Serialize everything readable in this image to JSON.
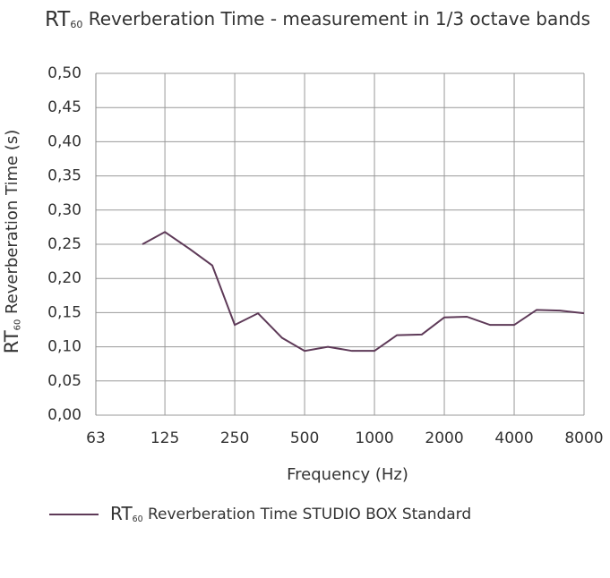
{
  "chart_data": {
    "type": "line",
    "title": [
      "RT",
      "60",
      " Reverberation Time  - measurement in 1/3 octave bands"
    ],
    "x_label": "Frequency (Hz)",
    "y_label": [
      "RT",
      "60",
      " Reverberation Time (s)"
    ],
    "x": [
      100,
      125,
      160,
      200,
      250,
      315,
      400,
      500,
      630,
      800,
      1000,
      1250,
      1600,
      2000,
      2500,
      3150,
      4000,
      5000,
      6300,
      8000
    ],
    "series": [
      {
        "name": [
          "RT",
          "60",
          " Reverberation Time STUDIO BOX Standard"
        ],
        "color": "#5e3a58",
        "values": [
          0.25,
          0.268,
          0.243,
          0.219,
          0.132,
          0.149,
          0.113,
          0.094,
          0.1,
          0.094,
          0.094,
          0.117,
          0.118,
          0.143,
          0.144,
          0.132,
          0.132,
          0.154,
          0.153,
          0.149
        ]
      }
    ],
    "xscale": "log",
    "xlim": [
      63,
      8000
    ],
    "xticks": [
      63,
      125,
      250,
      500,
      1000,
      2000,
      4000,
      8000
    ],
    "ylim": [
      0,
      0.5
    ],
    "yticks": [
      {
        "value": 0,
        "label": "0,00"
      },
      {
        "value": 0.05,
        "label": "0,05"
      },
      {
        "value": 0.1,
        "label": "0,10"
      },
      {
        "value": 0.15,
        "label": "0,15"
      },
      {
        "value": 0.2,
        "label": "0,20"
      },
      {
        "value": 0.25,
        "label": "0,25"
      },
      {
        "value": 0.3,
        "label": "0,30"
      },
      {
        "value": 0.35,
        "label": "0,35"
      },
      {
        "value": 0.4,
        "label": "0,40"
      },
      {
        "value": 0.45,
        "label": "0,45"
      },
      {
        "value": 0.5,
        "label": "0,50"
      }
    ],
    "grid": true
  }
}
